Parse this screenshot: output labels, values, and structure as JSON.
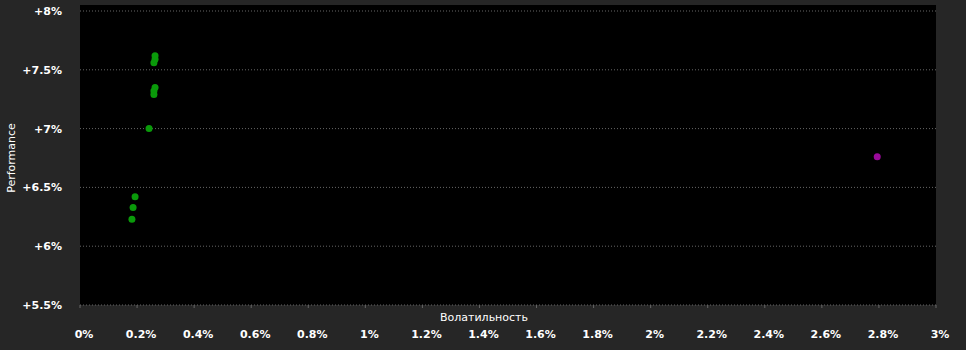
{
  "chart_data": {
    "type": "scatter",
    "x_label": "Волатильность",
    "y_label": "Performance",
    "xlim": [
      0,
      3
    ],
    "ylim": [
      5.5,
      8
    ],
    "xticks": [
      {
        "value": 0,
        "label": "0%"
      },
      {
        "value": 0.2,
        "label": "0.2%"
      },
      {
        "value": 0.4,
        "label": "0.4%"
      },
      {
        "value": 0.6,
        "label": "0.6%"
      },
      {
        "value": 0.8,
        "label": "0.8%"
      },
      {
        "value": 1,
        "label": "1%"
      },
      {
        "value": 1.2,
        "label": "1.2%"
      },
      {
        "value": 1.4,
        "label": "1.4%"
      },
      {
        "value": 1.6,
        "label": "1.6%"
      },
      {
        "value": 1.8,
        "label": "1.8%"
      },
      {
        "value": 2,
        "label": "2%"
      },
      {
        "value": 2.2,
        "label": "2.2%"
      },
      {
        "value": 2.4,
        "label": "2.4%"
      },
      {
        "value": 2.6,
        "label": "2.6%"
      },
      {
        "value": 2.8,
        "label": "2.8%"
      },
      {
        "value": 3,
        "label": "3%"
      }
    ],
    "yticks": [
      {
        "value": 5.5,
        "label": "+5.5%"
      },
      {
        "value": 6,
        "label": "+6%"
      },
      {
        "value": 6.5,
        "label": "+6.5%"
      },
      {
        "value": 7,
        "label": "+7%"
      },
      {
        "value": 7.5,
        "label": "+7.5%"
      },
      {
        "value": 8,
        "label": "+8%"
      }
    ],
    "grid": true,
    "series": [
      {
        "color": "#0a9a0a",
        "marker": "circle",
        "x": [
          0.249,
          0.249,
          0.245,
          0.249,
          0.245,
          0.245,
          0.228,
          0.179,
          0.172,
          0.168
        ],
        "values": [
          7.62,
          7.59,
          7.56,
          7.35,
          7.32,
          7.29,
          7.0,
          6.42,
          6.33,
          6.23
        ]
      },
      {
        "color": "#9a0a9a",
        "marker": "circle",
        "x": [
          2.78
        ],
        "values": [
          6.76
        ]
      }
    ]
  }
}
